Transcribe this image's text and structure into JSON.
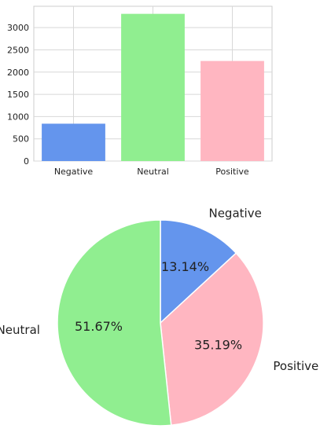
{
  "chart_data": [
    {
      "type": "bar",
      "categories": [
        "Negative",
        "Neutral",
        "Positive"
      ],
      "values": [
        840,
        3310,
        2250
      ],
      "colors": [
        "#6495ED",
        "#90EE90",
        "#FFB6C1"
      ],
      "yticks": [
        "0",
        "500",
        "1000",
        "1500",
        "2000",
        "2500",
        "3000"
      ],
      "ylim": [
        0,
        3480
      ],
      "grid": true
    },
    {
      "type": "pie",
      "labels": [
        "Negative",
        "Positive",
        "Neutral"
      ],
      "percent_labels": [
        "13.14%",
        "35.19%",
        "51.67%"
      ],
      "values": [
        13.14,
        35.19,
        51.67
      ],
      "colors": [
        "#6495ED",
        "#FFB6C1",
        "#90EE90"
      ]
    }
  ]
}
